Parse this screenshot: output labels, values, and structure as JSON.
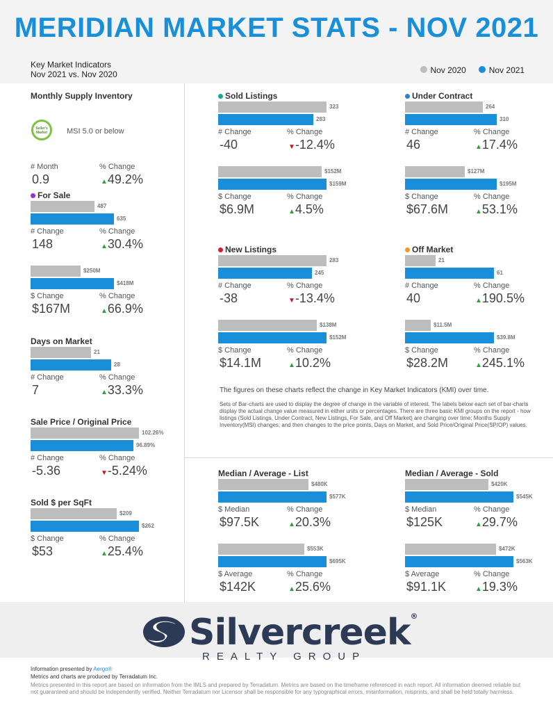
{
  "title": "MERIDIAN MARKET STATS - NOV 2021",
  "header": {
    "line1": "Key Market Indicators",
    "line2": "Nov 2021 vs. Nov 2020",
    "legend": [
      {
        "label": "Nov 2020",
        "color": "#bdbdbd"
      },
      {
        "label": "Nov 2021",
        "color": "#1a8fd9"
      }
    ]
  },
  "msi": {
    "title": "Monthly Supply Inventory",
    "badge_line1": "Seller's",
    "badge_line2": "Market",
    "text": "MSI 5.0 or below",
    "lbl1": "# Month",
    "val1": "0.9",
    "lbl2": "% Change",
    "val2": "49.2%"
  },
  "for_sale": {
    "title": "For Sale",
    "dot_color": "#9b2fc1",
    "bars1": {
      "g": 487,
      "b": 635
    },
    "bars1_lbl": {
      "g": "487",
      "b": "635"
    },
    "lbl1": "# Change",
    "val1": "148",
    "lbl2": "% Change",
    "val2": "30.4%",
    "bars2": {
      "g": 250,
      "b": 418
    },
    "bars2_lbl": {
      "g": "$250M",
      "b": "$418M"
    },
    "lbl3": "$ Change",
    "val3": "$167M",
    "lbl4": "% Change",
    "val4": "66.9%"
  },
  "dom": {
    "title": "Days on Market",
    "bars": {
      "g": 21,
      "b": 28
    },
    "bars_lbl": {
      "g": "21",
      "b": "28"
    },
    "lbl1": "# Change",
    "val1": "7",
    "lbl2": "% Change",
    "val2": "33.3%"
  },
  "sp_op": {
    "title": "Sale Price / Original Price",
    "bars": {
      "g": 102.26,
      "b": 96.89
    },
    "bars_lbl": {
      "g": "102.26%",
      "b": "96.89%"
    },
    "lbl1": "# Change",
    "val1": "-5.36",
    "lbl2": "% Change",
    "val2": "-5.24%"
  },
  "sqft": {
    "title": "Sold $ per SqFt",
    "bars": {
      "g": 209,
      "b": 262
    },
    "bars_lbl": {
      "g": "$209",
      "b": "$262"
    },
    "lbl1": "$ Change",
    "val1": "$53",
    "lbl2": "% Change",
    "val2": "25.4%"
  },
  "sold": {
    "title": "Sold Listings",
    "dot_color": "#1aa39a",
    "bars1": {
      "g": 323,
      "b": 283
    },
    "bars1_lbl": {
      "g": "323",
      "b": "283"
    },
    "lbl1": "# Change",
    "val1": "-40",
    "lbl2": "% Change",
    "val2": "-12.4%",
    "bars2": {
      "g": 152,
      "b": 159
    },
    "bars2_lbl": {
      "g": "$152M",
      "b": "$159M"
    },
    "lbl3": "$ Change",
    "val3": "$6.9M",
    "lbl4": "% Change",
    "val4": "4.5%"
  },
  "under_contract": {
    "title": "Under Contract",
    "dot_color": "#2d7fd1",
    "bars1": {
      "g": 264,
      "b": 310
    },
    "bars1_lbl": {
      "g": "264",
      "b": "310"
    },
    "lbl1": "# Change",
    "val1": "46",
    "lbl2": "% Change",
    "val2": "17.4%",
    "bars2": {
      "g": 127,
      "b": 195
    },
    "bars2_lbl": {
      "g": "$127M",
      "b": "$195M"
    },
    "lbl3": "$ Change",
    "val3": "$67.6M",
    "lbl4": "% Change",
    "val4": "53.1%"
  },
  "new_listings": {
    "title": "New Listings",
    "dot_color": "#d0202e",
    "bars1": {
      "g": 283,
      "b": 245
    },
    "bars1_lbl": {
      "g": "283",
      "b": "245"
    },
    "lbl1": "# Change",
    "val1": "-38",
    "lbl2": "% Change",
    "val2": "-13.4%",
    "bars2": {
      "g": 138,
      "b": 152
    },
    "bars2_lbl": {
      "g": "$138M",
      "b": "$152M"
    },
    "lbl3": "$ Change",
    "val3": "$14.1M",
    "lbl4": "% Change",
    "val4": "10.2%"
  },
  "off_market": {
    "title": "Off Market",
    "dot_color": "#f39b1a",
    "bars1": {
      "g": 21,
      "b": 61
    },
    "bars1_lbl": {
      "g": "21",
      "b": "61"
    },
    "lbl1": "# Change",
    "val1": "40",
    "lbl2": "% Change",
    "val2": "190.5%",
    "bars2": {
      "g": 11.5,
      "b": 39.8
    },
    "bars2_lbl": {
      "g": "$11.5M",
      "b": "$39.8M"
    },
    "lbl3": "$ Change",
    "val3": "$28.2M",
    "lbl4": "% Change",
    "val4": "245.1%"
  },
  "notes": {
    "main": "The figures on these charts reflect the change in Key Market Indicators (KMI) over time.",
    "small": "Sets of Bar-charts are used to display the degree of change in the variable of interest. The labels below each set of bar-charts display the actual change value measured in either units or percentages. There are three basic KMI groups on the report - how listings (Sold Listings, Under Contract, New Listings, For Sale, and Off Market) are changing over time; Months Supply Inventory(MSI) changes; and then changes to the price points, Days on Market, and Sold Price/Original Price(SP/OP) values."
  },
  "list_prices": {
    "title": "Median / Average - List",
    "bars1": {
      "g": 480,
      "b": 577
    },
    "bars1_lbl": {
      "g": "$480K",
      "b": "$577K"
    },
    "lbl1": "$ Median",
    "val1": "$97.5K",
    "lbl2": "% Change",
    "val2": "20.3%",
    "bars2": {
      "g": 553,
      "b": 695
    },
    "bars2_lbl": {
      "g": "$553K",
      "b": "$695K"
    },
    "lbl3": "$ Average",
    "val3": "$142K",
    "lbl4": "% Change",
    "val4": "25.6%"
  },
  "sold_prices": {
    "title": "Median / Average - Sold",
    "bars1": {
      "g": 420,
      "b": 545
    },
    "bars1_lbl": {
      "g": "$420K",
      "b": "$545K"
    },
    "lbl1": "$ Median",
    "val1": "$125K",
    "lbl2": "% Change",
    "val2": "29.7%",
    "bars2": {
      "g": 472,
      "b": 563
    },
    "bars2_lbl": {
      "g": "$472K",
      "b": "$563K"
    },
    "lbl3": "$ Average",
    "val3": "$91.1K",
    "lbl4": "% Change",
    "val4": "19.3%"
  },
  "logo": {
    "name": "Silvercreek",
    "registered": "®",
    "subtitle": "REALTY GROUP",
    "color": "#2d3a55"
  },
  "footer": {
    "presented_prefix": "Information presented by ",
    "presented_link": "Aergo®",
    "produced": "Metrics and charts are produced by Terradatum Inc.",
    "disclaimer": "Metrics presented in this report are based on information from the IMLS and prepared by Terradatum. Metrics are based on the timeframe referenced in each report. All information deemed reliable but not guaranteed and should be independently verified. Neither Terradatum nor Licensor shall be responsible for any typographical errors, misinformation, misprints, and shall be held totally harmless."
  }
}
